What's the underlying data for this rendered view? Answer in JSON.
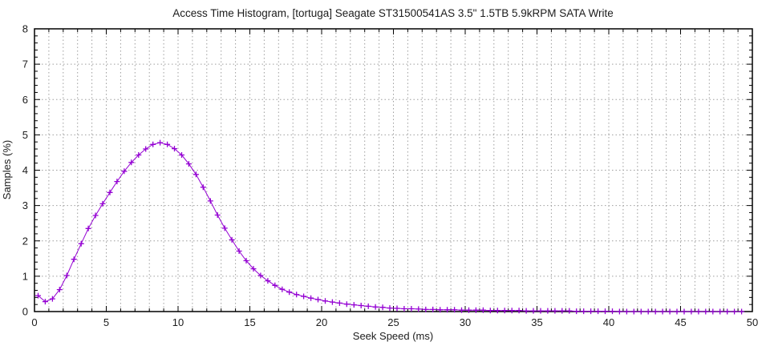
{
  "chart_data": {
    "type": "line",
    "title": "Access Time Histogram, [tortuga] Seagate ST31500541AS 3.5\" 1.5TB 5.9kRPM SATA Write",
    "xlabel": "Seek Speed (ms)",
    "ylabel": "Samples (%)",
    "xlim": [
      0,
      50
    ],
    "ylim": [
      0,
      8
    ],
    "xticks": [
      0,
      5,
      10,
      15,
      20,
      25,
      30,
      35,
      40,
      45,
      50
    ],
    "yticks": [
      0,
      1,
      2,
      3,
      4,
      5,
      6,
      7,
      8
    ],
    "x_minor_interval": 1,
    "y_minor_interval": 0.2,
    "grid": {
      "show": true,
      "style": "dashed",
      "color": "#9e9e9e",
      "x_interval": 1,
      "y_interval": 1
    },
    "legend_position": "none",
    "background_color": "#ffffff",
    "border_color": "#000000",
    "series": [
      {
        "name": "samples",
        "marker": "plus",
        "color": "#9400d3",
        "x": [
          0.25,
          0.75,
          1.25,
          1.75,
          2.25,
          2.75,
          3.25,
          3.75,
          4.25,
          4.75,
          5.25,
          5.75,
          6.25,
          6.75,
          7.25,
          7.75,
          8.25,
          8.75,
          9.25,
          9.75,
          10.25,
          10.75,
          11.25,
          11.75,
          12.25,
          12.75,
          13.25,
          13.75,
          14.25,
          14.75,
          15.25,
          15.75,
          16.25,
          16.75,
          17.25,
          17.75,
          18.25,
          18.75,
          19.25,
          19.75,
          20.25,
          20.75,
          21.25,
          21.75,
          22.25,
          22.75,
          23.25,
          23.75,
          24.25,
          24.75,
          25.25,
          25.75,
          26.25,
          26.75,
          27.25,
          27.75,
          28.25,
          28.75,
          29.25,
          29.75,
          30.25,
          30.75,
          31.25,
          31.75,
          32.25,
          32.75,
          33.25,
          33.75,
          34.25,
          34.75,
          35.25,
          35.75,
          36.25,
          36.75,
          37.25,
          37.75,
          38.25,
          38.75,
          39.25,
          39.75,
          40.25,
          40.75,
          41.25,
          41.75,
          42.25,
          42.75,
          43.25,
          43.75,
          44.25,
          44.75,
          45.25,
          45.75,
          46.25,
          46.75,
          47.25,
          47.75,
          48.25,
          48.75,
          49.25
        ],
        "y": [
          0.45,
          0.28,
          0.36,
          0.62,
          1.02,
          1.48,
          1.92,
          2.35,
          2.72,
          3.05,
          3.37,
          3.68,
          3.97,
          4.22,
          4.43,
          4.6,
          4.73,
          4.78,
          4.73,
          4.61,
          4.43,
          4.18,
          3.88,
          3.52,
          3.13,
          2.73,
          2.36,
          2.03,
          1.71,
          1.44,
          1.21,
          1.02,
          0.87,
          0.74,
          0.63,
          0.55,
          0.48,
          0.43,
          0.38,
          0.34,
          0.3,
          0.27,
          0.24,
          0.21,
          0.19,
          0.17,
          0.15,
          0.13,
          0.12,
          0.1,
          0.09,
          0.08,
          0.08,
          0.07,
          0.06,
          0.06,
          0.05,
          0.05,
          0.05,
          0.04,
          0.04,
          0.04,
          0.04,
          0.03,
          0.03,
          0.03,
          0.03,
          0.03,
          0.02,
          0.02,
          0.02,
          0.02,
          0.02,
          0.02,
          0.02,
          0.01,
          0.01,
          0.01,
          0.01,
          0.01,
          0.01,
          0,
          0,
          0,
          0,
          0,
          0,
          0,
          0,
          0,
          0,
          0,
          0,
          0,
          0,
          0,
          0,
          0,
          0
        ]
      }
    ]
  }
}
